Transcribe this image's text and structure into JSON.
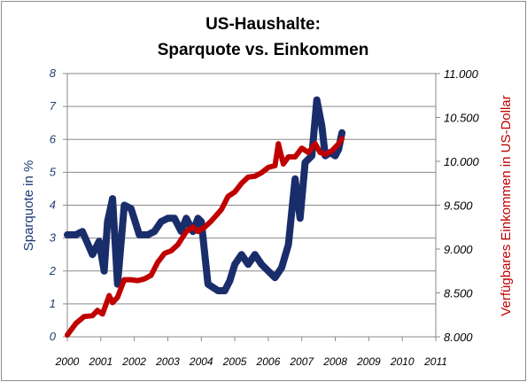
{
  "chart_data": {
    "type": "line",
    "title_lines": [
      "US-Haushalte:",
      "Sparquote vs. Einkommen"
    ],
    "xlabel": "",
    "ylabel_left": "Sparquote in %",
    "ylabel_right": "Verfügbares Einkommen in US-Dollar",
    "x_ticks": [
      "2000",
      "2001",
      "2002",
      "2003",
      "2004",
      "2005",
      "2006",
      "2007",
      "2008",
      "2009",
      "2010",
      "2011"
    ],
    "xlim": [
      2000,
      2011
    ],
    "y_left_ticks": [
      "0",
      "1",
      "2",
      "3",
      "4",
      "5",
      "6",
      "7",
      "8"
    ],
    "ylim_left": [
      0,
      8
    ],
    "y_right_ticks": [
      "8.000",
      "8.500",
      "9.000",
      "9.500",
      "10.000",
      "10.500",
      "11.000"
    ],
    "ylim_right": [
      8000,
      11000
    ],
    "grid": true,
    "legend": "none",
    "series": [
      {
        "axis": "left",
        "color": "#1a2d6b",
        "points": [
          [
            2000.0,
            3.1
          ],
          [
            2000.25,
            3.1
          ],
          [
            2000.45,
            3.2
          ],
          [
            2000.75,
            2.5
          ],
          [
            2000.95,
            2.9
          ],
          [
            2001.1,
            2.0
          ],
          [
            2001.2,
            3.5
          ],
          [
            2001.35,
            4.2
          ],
          [
            2001.5,
            1.6
          ],
          [
            2001.7,
            4.0
          ],
          [
            2001.9,
            3.9
          ],
          [
            2002.15,
            3.1
          ],
          [
            2002.4,
            3.1
          ],
          [
            2002.6,
            3.2
          ],
          [
            2002.8,
            3.5
          ],
          [
            2003.0,
            3.6
          ],
          [
            2003.2,
            3.6
          ],
          [
            2003.4,
            3.2
          ],
          [
            2003.55,
            3.6
          ],
          [
            2003.75,
            3.2
          ],
          [
            2003.9,
            3.6
          ],
          [
            2004.0,
            3.5
          ],
          [
            2004.2,
            1.6
          ],
          [
            2004.5,
            1.4
          ],
          [
            2004.7,
            1.4
          ],
          [
            2004.85,
            1.7
          ],
          [
            2005.0,
            2.2
          ],
          [
            2005.2,
            2.5
          ],
          [
            2005.4,
            2.2
          ],
          [
            2005.6,
            2.5
          ],
          [
            2005.8,
            2.2
          ],
          [
            2006.0,
            2.0
          ],
          [
            2006.2,
            1.8
          ],
          [
            2006.4,
            2.1
          ],
          [
            2006.6,
            2.8
          ],
          [
            2006.8,
            4.8
          ],
          [
            2006.95,
            3.6
          ],
          [
            2007.1,
            5.3
          ],
          [
            2007.3,
            5.5
          ],
          [
            2007.45,
            7.2
          ],
          [
            2007.6,
            6.4
          ],
          [
            2007.7,
            5.5
          ],
          [
            2007.85,
            5.6
          ],
          [
            2008.0,
            5.5
          ],
          [
            2008.1,
            5.7
          ],
          [
            2008.2,
            6.2
          ]
        ]
      },
      {
        "axis": "right",
        "color": "#c00000",
        "points": [
          [
            2000.0,
            8020
          ],
          [
            2000.25,
            8150
          ],
          [
            2000.5,
            8230
          ],
          [
            2000.75,
            8240
          ],
          [
            2000.9,
            8300
          ],
          [
            2001.05,
            8260
          ],
          [
            2001.25,
            8470
          ],
          [
            2001.35,
            8390
          ],
          [
            2001.5,
            8450
          ],
          [
            2001.7,
            8650
          ],
          [
            2001.9,
            8650
          ],
          [
            2002.1,
            8640
          ],
          [
            2002.3,
            8660
          ],
          [
            2002.5,
            8700
          ],
          [
            2002.7,
            8850
          ],
          [
            2002.9,
            8950
          ],
          [
            2003.1,
            8980
          ],
          [
            2003.3,
            9050
          ],
          [
            2003.55,
            9200
          ],
          [
            2003.75,
            9250
          ],
          [
            2003.9,
            9200
          ],
          [
            2004.1,
            9250
          ],
          [
            2004.3,
            9320
          ],
          [
            2004.6,
            9450
          ],
          [
            2004.8,
            9600
          ],
          [
            2005.0,
            9650
          ],
          [
            2005.2,
            9750
          ],
          [
            2005.4,
            9820
          ],
          [
            2005.6,
            9830
          ],
          [
            2005.8,
            9870
          ],
          [
            2006.0,
            9930
          ],
          [
            2006.2,
            9950
          ],
          [
            2006.3,
            10200
          ],
          [
            2006.45,
            9970
          ],
          [
            2006.6,
            10050
          ],
          [
            2006.8,
            10050
          ],
          [
            2007.0,
            10150
          ],
          [
            2007.2,
            10100
          ],
          [
            2007.4,
            10200
          ],
          [
            2007.55,
            10100
          ],
          [
            2007.7,
            10080
          ],
          [
            2007.9,
            10120
          ],
          [
            2008.1,
            10200
          ],
          [
            2008.2,
            10260
          ]
        ]
      }
    ]
  }
}
